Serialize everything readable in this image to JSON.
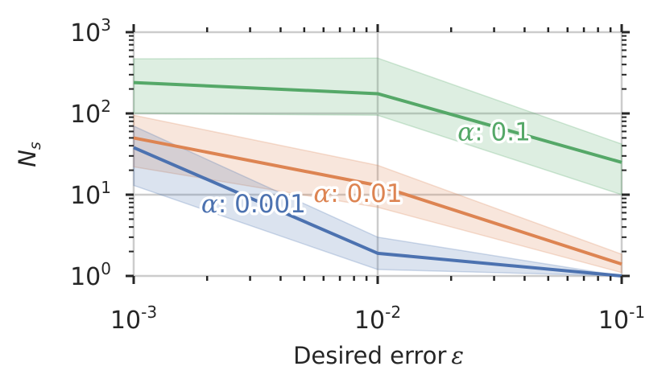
{
  "chart_data": {
    "type": "line",
    "xscale": "log",
    "yscale": "log",
    "xlim": [
      0.001,
      0.1
    ],
    "ylim": [
      1,
      1000
    ],
    "grid": true,
    "xlabel_text": "Desired error",
    "xlabel_symbol": "ε",
    "ylabel_main": "N",
    "ylabel_sub": "s",
    "x_ticks": [
      {
        "value": 0.001,
        "base": "10",
        "exp": "-3"
      },
      {
        "value": 0.01,
        "base": "10",
        "exp": "-2"
      },
      {
        "value": 0.1,
        "base": "10",
        "exp": "-1"
      }
    ],
    "y_ticks": [
      {
        "value": 1,
        "base": "10",
        "exp": "0"
      },
      {
        "value": 10,
        "base": "10",
        "exp": "1"
      },
      {
        "value": 100,
        "base": "10",
        "exp": "2"
      },
      {
        "value": 1000,
        "base": "10",
        "exp": "3"
      }
    ],
    "x": [
      0.001,
      0.01,
      0.1
    ],
    "series": [
      {
        "name": "α: 0.1",
        "label_symbol": "α",
        "label_value": ": 0.1",
        "color": "#55a868",
        "values": [
          240,
          175,
          25
        ],
        "lower": [
          100,
          95,
          10
        ],
        "upper": [
          470,
          480,
          42
        ]
      },
      {
        "name": "α: 0.01",
        "label_symbol": "α",
        "label_value": ": 0.01",
        "color": "#dd8452",
        "values": [
          50,
          13,
          1.4
        ],
        "lower": [
          22,
          7,
          1.1
        ],
        "upper": [
          95,
          23,
          1.85
        ]
      },
      {
        "name": "α: 0.001",
        "label_symbol": "α",
        "label_value": ": 0.001",
        "color": "#4c72b0",
        "values": [
          38,
          1.9,
          1.0
        ],
        "lower": [
          13,
          1.2,
          1.0
        ],
        "upper": [
          70,
          3.0,
          1.0
        ]
      }
    ]
  }
}
